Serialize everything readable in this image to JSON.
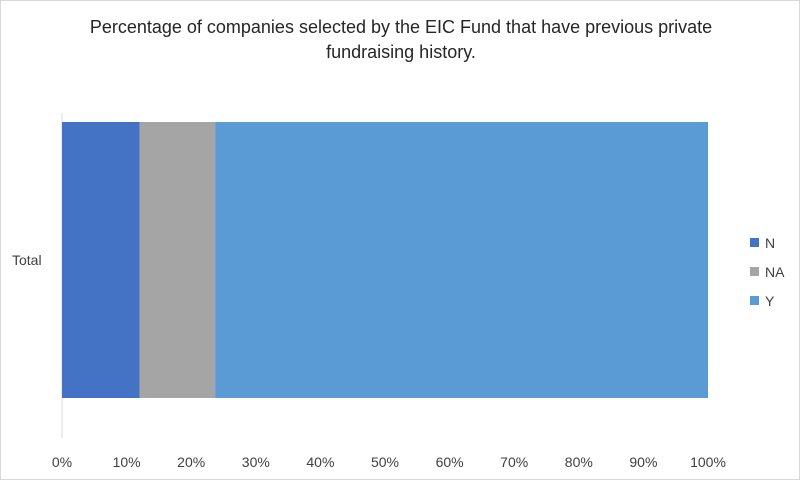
{
  "chart_data": {
    "type": "bar",
    "orientation": "horizontal",
    "stacked": "percent",
    "title": "Percentage of companies selected by the EIC Fund that have previous private fundraising history.",
    "title_lines": [
      "Percentage of companies selected by the EIC Fund that have previous private",
      "fundraising history."
    ],
    "categories": [
      "Total"
    ],
    "series": [
      {
        "name": "N",
        "color": "#4472C4",
        "values": [
          12
        ]
      },
      {
        "name": "NA",
        "color": "#A5A5A5",
        "values": [
          11.7
        ]
      },
      {
        "name": "Y",
        "color": "#5B9BD5",
        "values": [
          76.3
        ]
      }
    ],
    "xlim": [
      0,
      100
    ],
    "x_ticks": [
      "0%",
      "10%",
      "20%",
      "30%",
      "40%",
      "50%",
      "60%",
      "70%",
      "80%",
      "90%",
      "100%"
    ],
    "xlabel": "",
    "ylabel": "",
    "grid": false,
    "legend_position": "right"
  }
}
